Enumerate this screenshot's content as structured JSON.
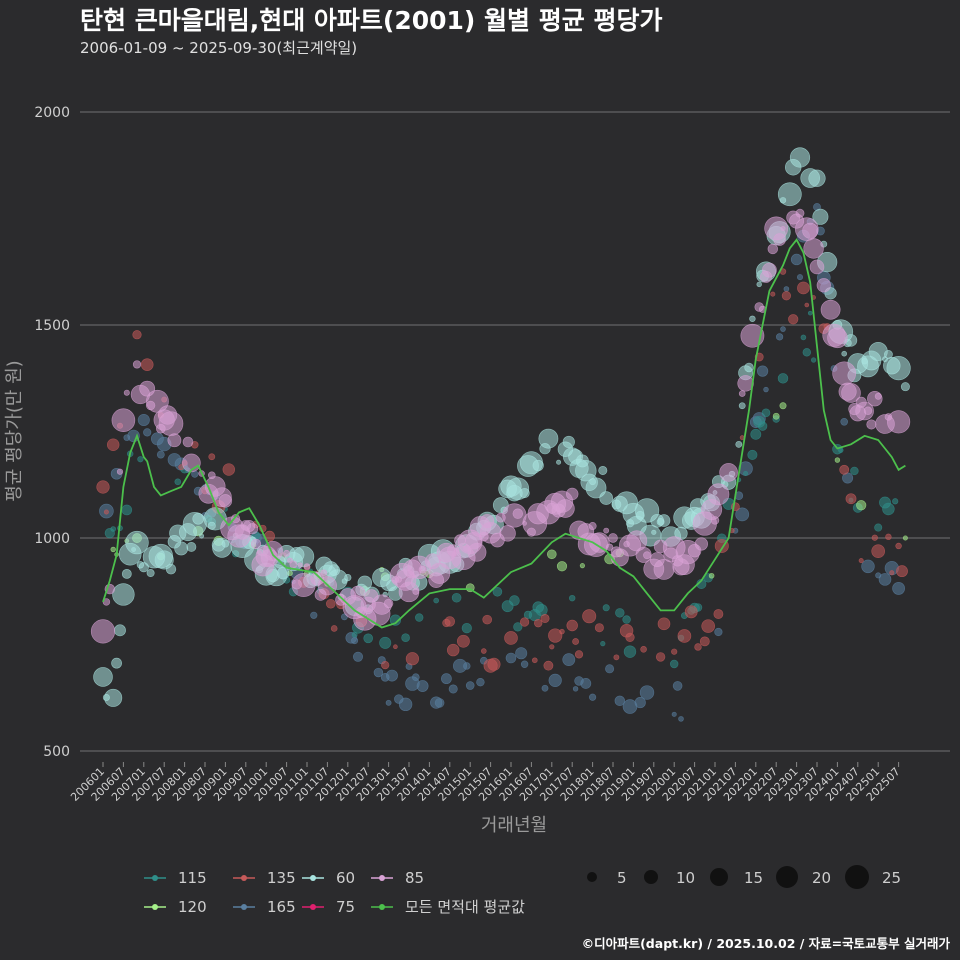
{
  "chart_data": {
    "type": "scatter",
    "title": "탄현 큰마을대림,현대 아파트(2001) 월별 평균 평당가",
    "subtitle": "2006-01-09 ~ 2025-09-30(최근계약일)",
    "xlabel": "거래년월",
    "ylabel": "평균 평당가(만 원)",
    "ylim": [
      450,
      2080
    ],
    "yticks": [
      500,
      1000,
      1500,
      2000
    ],
    "grid": true,
    "x_start": "2006-01",
    "x_end": "2025-09",
    "xtick_labels": [
      "200601",
      "200607",
      "200701",
      "200707",
      "200801",
      "200807",
      "200901",
      "200907",
      "201001",
      "201007",
      "201101",
      "201107",
      "201201",
      "201207",
      "201301",
      "201307",
      "201401",
      "201407",
      "201501",
      "201507",
      "201601",
      "201607",
      "201701",
      "201707",
      "201801",
      "201807",
      "201901",
      "201907",
      "202001",
      "202007",
      "202101",
      "202107",
      "202201",
      "202207",
      "202301",
      "202307",
      "202401",
      "202407",
      "202501",
      "202507"
    ],
    "series_colors": {
      "115": "#2f8f8a",
      "120": "#a6f08a",
      "135": "#c65a5a",
      "165": "#5a7fa0",
      "60": "#a9e4e0",
      "75": "#e0206e",
      "85": "#d9a3d6",
      "avg": "#4cc04c"
    },
    "series_anchors": {
      "60": [
        [
          0,
          650
        ],
        [
          2,
          620
        ],
        [
          4,
          680
        ],
        [
          6,
          850
        ],
        [
          8,
          970
        ],
        [
          14,
          950
        ],
        [
          18,
          930
        ],
        [
          24,
          1000
        ],
        [
          30,
          1020
        ],
        [
          38,
          1000
        ],
        [
          48,
          950
        ],
        [
          54,
          940
        ],
        [
          60,
          920
        ],
        [
          66,
          900
        ],
        [
          72,
          880
        ],
        [
          78,
          860
        ],
        [
          84,
          880
        ],
        [
          90,
          920
        ],
        [
          96,
          940
        ],
        [
          102,
          960
        ],
        [
          108,
          980
        ],
        [
          114,
          1050
        ],
        [
          120,
          1100
        ],
        [
          126,
          1150
        ],
        [
          132,
          1210
        ],
        [
          138,
          1210
        ],
        [
          144,
          1150
        ],
        [
          150,
          1100
        ],
        [
          156,
          1060
        ],
        [
          162,
          1030
        ],
        [
          168,
          1030
        ],
        [
          174,
          1050
        ],
        [
          180,
          1100
        ],
        [
          186,
          1180
        ],
        [
          192,
          1550
        ],
        [
          198,
          1720
        ],
        [
          204,
          1870
        ],
        [
          210,
          1810
        ],
        [
          216,
          1500
        ],
        [
          222,
          1400
        ],
        [
          228,
          1420
        ],
        [
          234,
          1380
        ],
        [
          240,
          1400
        ],
        [
          234,
          1380
        ],
        [
          236,
          1390
        ]
      ],
      "85": [
        [
          0,
          780
        ],
        [
          2,
          900
        ],
        [
          4,
          1100
        ],
        [
          6,
          1280
        ],
        [
          8,
          1420
        ],
        [
          12,
          1350
        ],
        [
          18,
          1270
        ],
        [
          24,
          1230
        ],
        [
          30,
          1150
        ],
        [
          36,
          1060
        ],
        [
          42,
          1010
        ],
        [
          48,
          960
        ],
        [
          54,
          930
        ],
        [
          60,
          910
        ],
        [
          66,
          880
        ],
        [
          72,
          850
        ],
        [
          78,
          840
        ],
        [
          84,
          860
        ],
        [
          90,
          890
        ],
        [
          96,
          920
        ],
        [
          102,
          950
        ],
        [
          108,
          990
        ],
        [
          114,
          1010
        ],
        [
          120,
          1020
        ],
        [
          126,
          1030
        ],
        [
          132,
          1050
        ],
        [
          138,
          1070
        ],
        [
          144,
          1000
        ],
        [
          150,
          990
        ],
        [
          156,
          970
        ],
        [
          162,
          960
        ],
        [
          168,
          950
        ],
        [
          174,
          980
        ],
        [
          180,
          1050
        ],
        [
          186,
          1250
        ],
        [
          192,
          1500
        ],
        [
          198,
          1700
        ],
        [
          204,
          1750
        ],
        [
          210,
          1670
        ],
        [
          216,
          1450
        ],
        [
          222,
          1300
        ],
        [
          228,
          1300
        ],
        [
          234,
          1300
        ],
        [
          236,
          1290
        ]
      ],
      "120": [
        [
          4,
          950
        ],
        [
          24,
          1000
        ],
        [
          60,
          900
        ],
        [
          100,
          900
        ],
        [
          132,
          950
        ],
        [
          160,
          950
        ],
        [
          180,
          950
        ],
        [
          204,
          1370
        ],
        [
          228,
          1050
        ],
        [
          236,
          1020
        ]
      ],
      "115": [
        [
          2,
          1000
        ],
        [
          10,
          1200
        ],
        [
          40,
          1000
        ],
        [
          80,
          780
        ],
        [
          120,
          820
        ],
        [
          150,
          800
        ],
        [
          170,
          760
        ],
        [
          190,
          1200
        ],
        [
          208,
          1500
        ],
        [
          222,
          1080
        ],
        [
          236,
          1050
        ]
      ],
      "135": [
        [
          2,
          1100
        ],
        [
          8,
          1500
        ],
        [
          20,
          1250
        ],
        [
          60,
          900
        ],
        [
          84,
          730
        ],
        [
          110,
          760
        ],
        [
          130,
          760
        ],
        [
          150,
          760
        ],
        [
          168,
          740
        ],
        [
          180,
          830
        ],
        [
          196,
          1600
        ],
        [
          212,
          1500
        ],
        [
          222,
          950
        ],
        [
          236,
          980
        ]
      ],
      "165": [
        [
          2,
          1050
        ],
        [
          10,
          1300
        ],
        [
          40,
          1000
        ],
        [
          70,
          820
        ],
        [
          84,
          650
        ],
        [
          102,
          650
        ],
        [
          120,
          690
        ],
        [
          140,
          680
        ],
        [
          160,
          640
        ],
        [
          168,
          610
        ],
        [
          180,
          700
        ],
        [
          192,
          1300
        ],
        [
          210,
          1800
        ],
        [
          222,
          940
        ],
        [
          236,
          880
        ]
      ]
    },
    "avg_line": [
      [
        0,
        850
      ],
      [
        2,
        900
      ],
      [
        4,
        960
      ],
      [
        6,
        1120
      ],
      [
        8,
        1200
      ],
      [
        10,
        1240
      ],
      [
        12,
        1190
      ],
      [
        13,
        1180
      ],
      [
        15,
        1120
      ],
      [
        17,
        1100
      ],
      [
        20,
        1110
      ],
      [
        23,
        1120
      ],
      [
        26,
        1160
      ],
      [
        28,
        1170
      ],
      [
        31,
        1120
      ],
      [
        34,
        1060
      ],
      [
        37,
        1030
      ],
      [
        40,
        1060
      ],
      [
        43,
        1070
      ],
      [
        46,
        1030
      ],
      [
        50,
        960
      ],
      [
        54,
        930
      ],
      [
        58,
        925
      ],
      [
        62,
        920
      ],
      [
        66,
        890
      ],
      [
        70,
        860
      ],
      [
        74,
        830
      ],
      [
        78,
        810
      ],
      [
        82,
        790
      ],
      [
        86,
        800
      ],
      [
        90,
        830
      ],
      [
        96,
        870
      ],
      [
        102,
        880
      ],
      [
        108,
        880
      ],
      [
        112,
        860
      ],
      [
        116,
        890
      ],
      [
        120,
        920
      ],
      [
        126,
        940
      ],
      [
        132,
        990
      ],
      [
        136,
        1010
      ],
      [
        140,
        1000
      ],
      [
        144,
        990
      ],
      [
        148,
        970
      ],
      [
        152,
        930
      ],
      [
        156,
        910
      ],
      [
        160,
        870
      ],
      [
        162,
        850
      ],
      [
        164,
        830
      ],
      [
        168,
        830
      ],
      [
        172,
        870
      ],
      [
        176,
        900
      ],
      [
        180,
        950
      ],
      [
        184,
        1000
      ],
      [
        186,
        1100
      ],
      [
        190,
        1300
      ],
      [
        192,
        1420
      ],
      [
        194,
        1500
      ],
      [
        196,
        1580
      ],
      [
        198,
        1610
      ],
      [
        200,
        1640
      ],
      [
        202,
        1680
      ],
      [
        204,
        1700
      ],
      [
        206,
        1670
      ],
      [
        208,
        1600
      ],
      [
        210,
        1450
      ],
      [
        212,
        1300
      ],
      [
        214,
        1230
      ],
      [
        216,
        1210
      ],
      [
        220,
        1220
      ],
      [
        224,
        1240
      ],
      [
        228,
        1230
      ],
      [
        230,
        1210
      ],
      [
        232,
        1190
      ],
      [
        234,
        1160
      ],
      [
        236,
        1170
      ]
    ],
    "legend_series": [
      "115",
      "120",
      "135",
      "165",
      "60",
      "75",
      "85",
      "모든 면적대 평균값"
    ],
    "legend_sizes": [
      5,
      10,
      15,
      20,
      25
    ]
  },
  "caption": "©디아파트(dapt.kr) / 2025.10.02 / 자료=국토교통부 실거래가"
}
